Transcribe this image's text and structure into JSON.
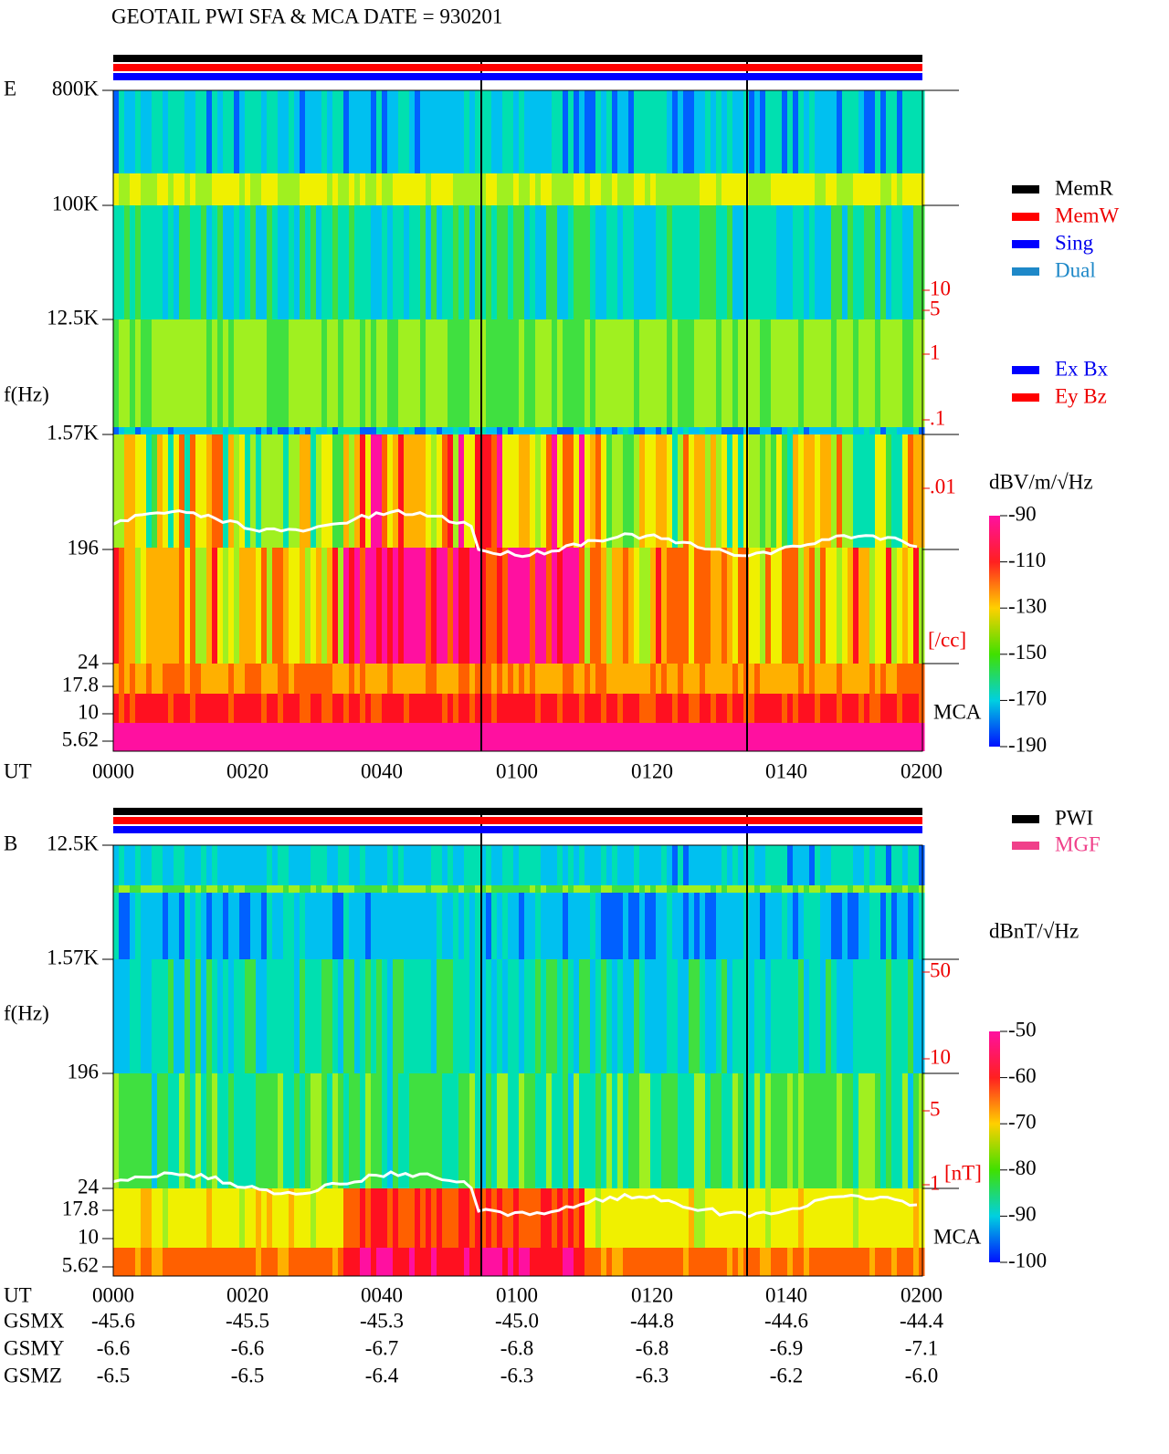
{
  "title": "GEOTAIL  PWI SFA & MCA   DATE = 930201",
  "e_panel": {
    "label": "E",
    "y_axis_title": "f(Hz)",
    "y_ticks": [
      "800K",
      "100K",
      "12.5K",
      "1.57K",
      "196",
      "24",
      "17.8",
      "10",
      "5.62"
    ],
    "x_axis_label": "UT",
    "x_ticks": [
      "0000",
      "0020",
      "0040",
      "0100",
      "0120",
      "0140",
      "0200"
    ],
    "status_legend": [
      "MemR",
      "MemW",
      "Sing",
      "Dual"
    ],
    "component_legend": [
      "Ex Bx",
      "Ey Bz"
    ],
    "density_ticks": [
      "10",
      "5",
      "1",
      ".1",
      ".01"
    ],
    "density_unit": "[/cc]",
    "mca_label": "MCA",
    "colorbar_unit": "dBV/m/√Hz",
    "colorbar_ticks": [
      "-90",
      "-110",
      "-130",
      "-150",
      "-170",
      "-190"
    ]
  },
  "b_panel": {
    "label": "B",
    "y_axis_title": "f(Hz)",
    "y_ticks": [
      "12.5K",
      "1.57K",
      "196",
      "24",
      "17.8",
      "10",
      "5.62"
    ],
    "x_axis_label": "UT",
    "x_ticks": [
      "0000",
      "0020",
      "0040",
      "0100",
      "0120",
      "0140",
      "0200"
    ],
    "source_legend": [
      "PWI",
      "MGF"
    ],
    "field_ticks": [
      "50",
      "10",
      "5",
      "1"
    ],
    "field_unit": "[nT]",
    "mca_label": "MCA",
    "colorbar_unit": "dBnT/√Hz",
    "colorbar_ticks": [
      "-50",
      "-60",
      "-70",
      "-80",
      "-90",
      "-100"
    ]
  },
  "orbit": {
    "rows": [
      {
        "label": "GSMX",
        "values": [
          "-45.6",
          "-45.5",
          "-45.3",
          "-45.0",
          "-44.8",
          "-44.6",
          "-44.4"
        ]
      },
      {
        "label": "GSMY",
        "values": [
          "-6.6",
          "-6.6",
          "-6.7",
          "-6.8",
          "-6.8",
          "-6.9",
          "-7.1"
        ]
      },
      {
        "label": "GSMZ",
        "values": [
          "-6.5",
          "-6.5",
          "-6.4",
          "-6.3",
          "-6.3",
          "-6.2",
          "-6.0"
        ]
      }
    ]
  }
}
